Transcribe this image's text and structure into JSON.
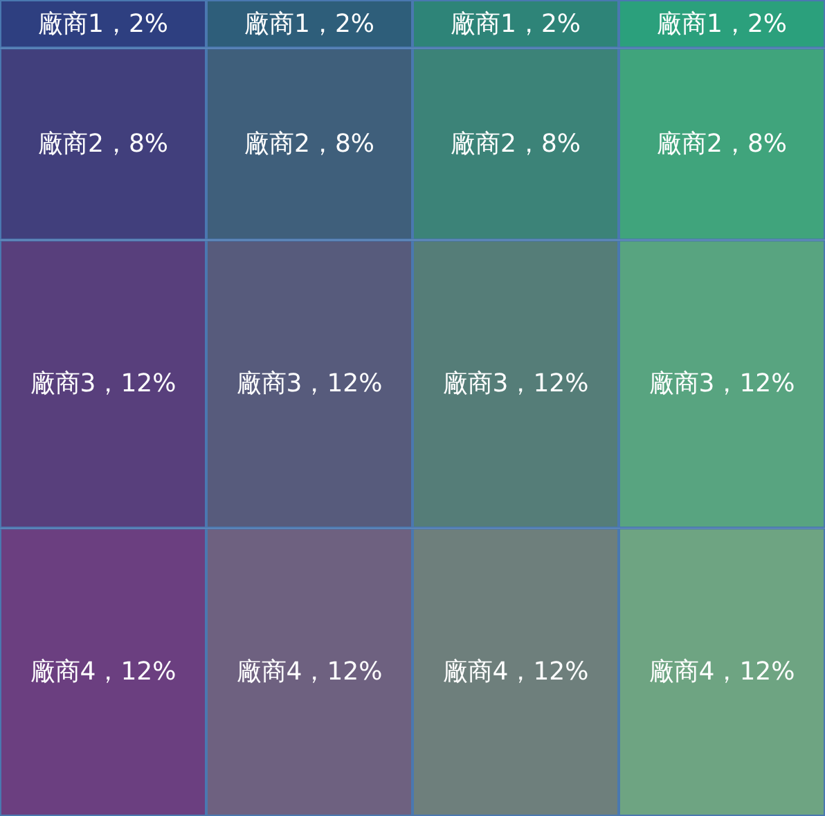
{
  "chart_data": {
    "type": "bar",
    "stacked": true,
    "categories": [
      null,
      null,
      null,
      null
    ],
    "series": [
      {
        "colors": [
          "#6b3f80",
          "#6e6180",
          "#6e7f7c",
          "#6ea482"
        ],
        "values": [
          12,
          12,
          12,
          12
        ],
        "value_labels": [
          "廠商4，12%",
          "廠商4，12%",
          "廠商4，12%",
          "廠商4，12%"
        ]
      },
      {
        "colors": [
          "#583f7c",
          "#575b7c",
          "#557d78",
          "#58a480"
        ],
        "values": [
          12,
          12,
          12,
          12
        ],
        "value_labels": [
          "廠商3，12%",
          "廠商3，12%",
          "廠商3，12%",
          "廠商3，12%"
        ]
      },
      {
        "colors": [
          "#413f7c",
          "#3f5f7b",
          "#3c8378",
          "#40a47c"
        ],
        "values": [
          8,
          8,
          8,
          8
        ],
        "value_labels": [
          "廠商2，8%",
          "廠商2，8%",
          "廠商2，8%",
          "廠商2，8%"
        ]
      },
      {
        "colors": [
          "#2e3f80",
          "#2e5e7a",
          "#2e8478",
          "#2ba07c"
        ],
        "values": [
          2,
          2,
          2,
          2
        ],
        "value_labels": [
          "廠商1，2%",
          "廠商1，2%",
          "廠商1，2%",
          "廠商1，2%"
        ]
      }
    ]
  }
}
